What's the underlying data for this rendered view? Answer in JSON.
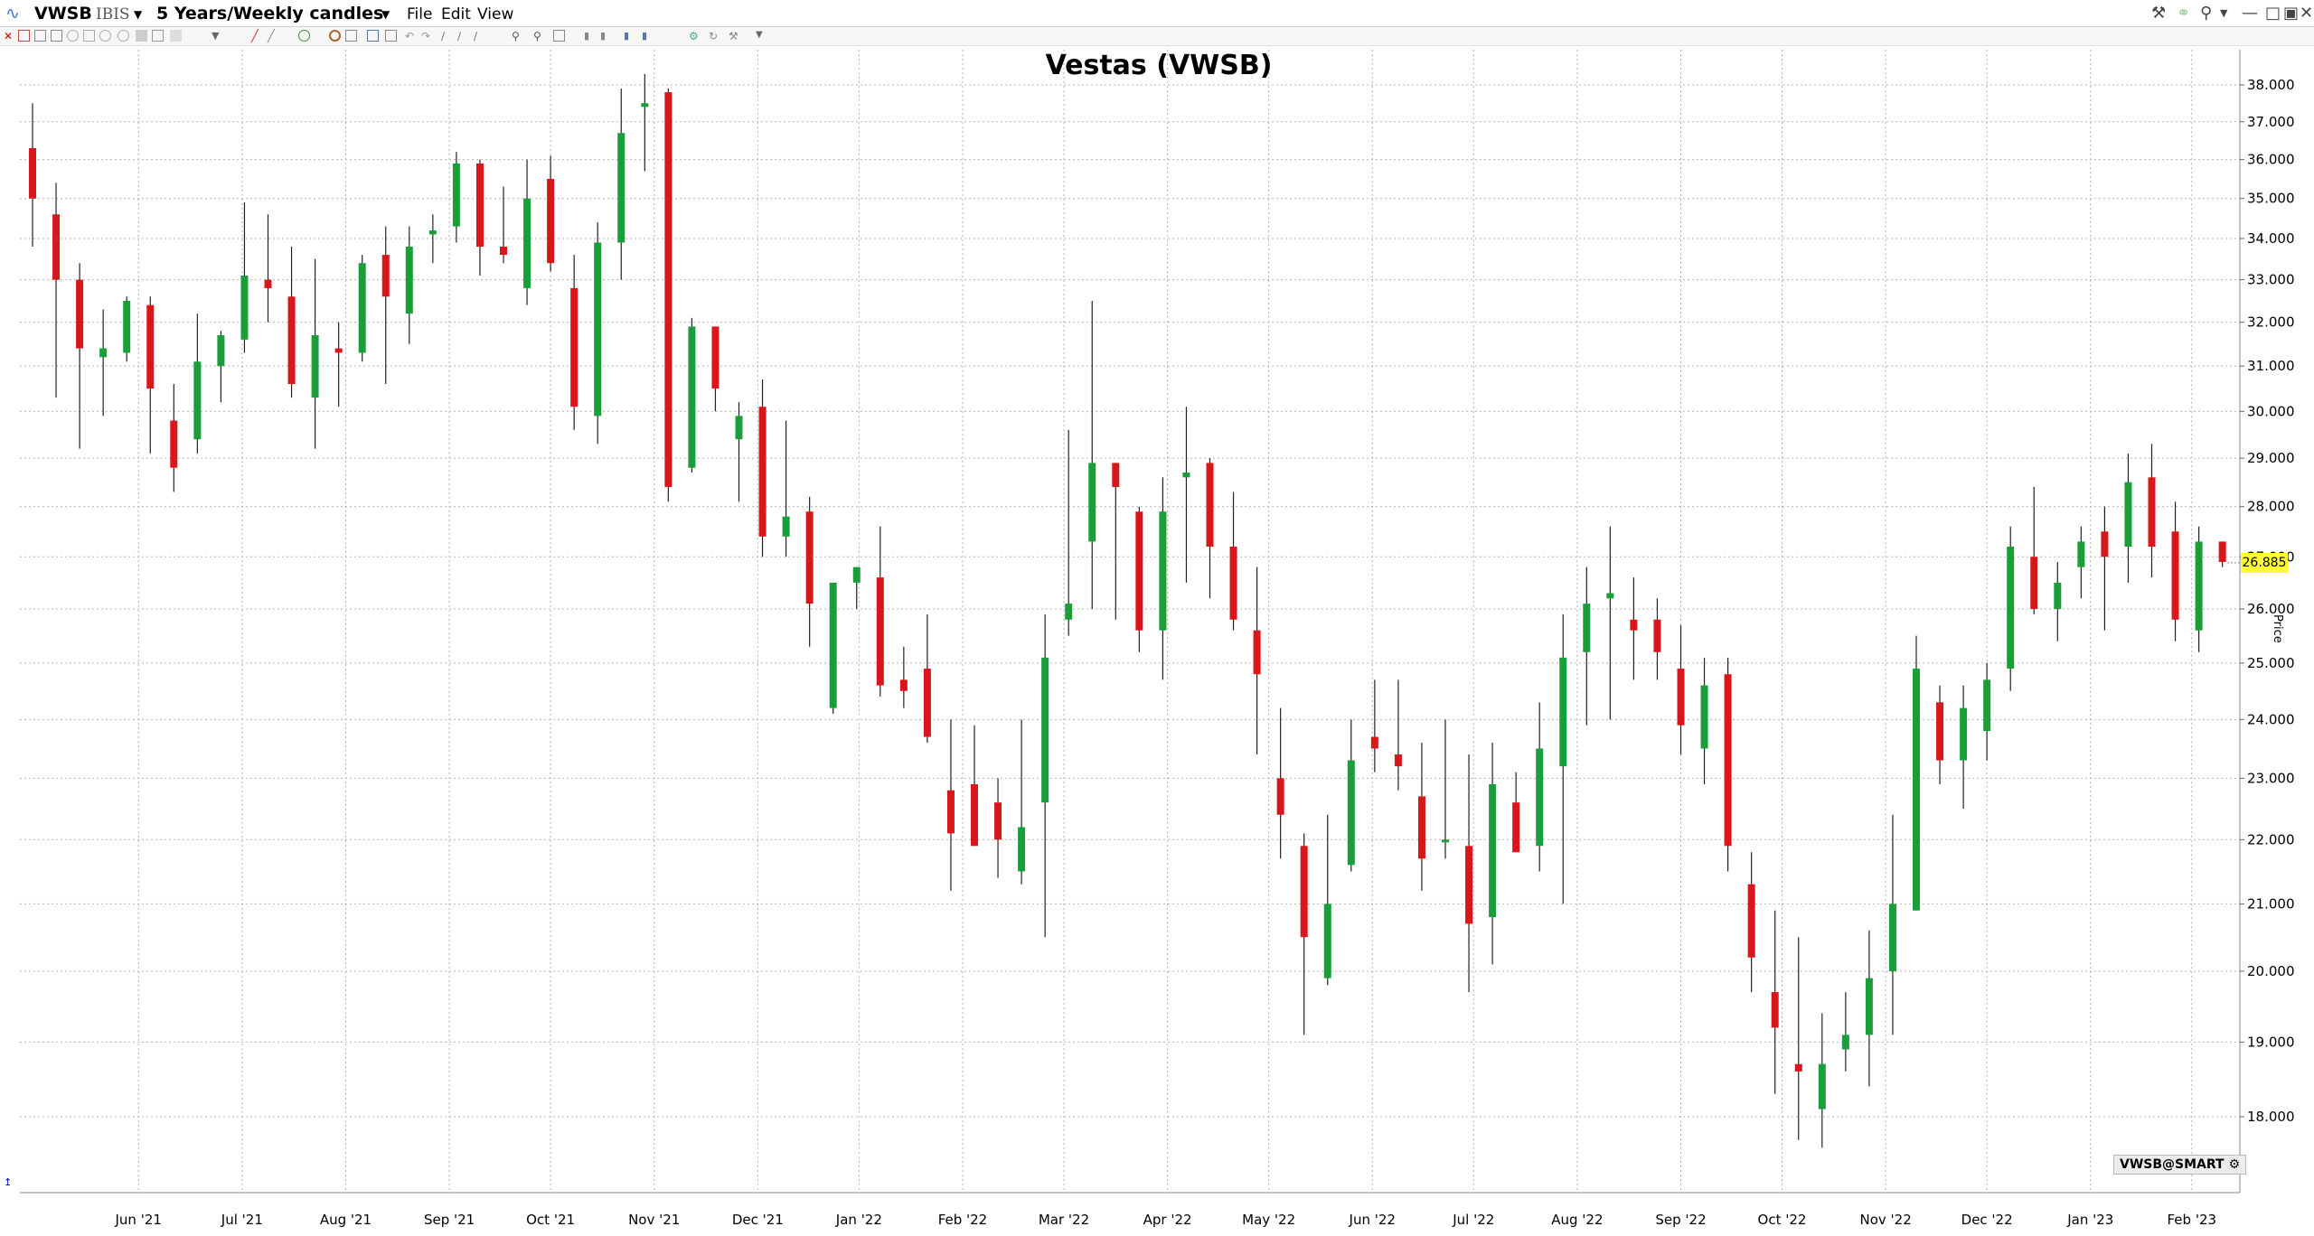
{
  "header": {
    "symbol": "VWSB",
    "exchange": "IBIS",
    "period": "5 Years/Weekly candles",
    "menu": [
      "File",
      "Edit",
      "View"
    ]
  },
  "legend": {
    "label": "VWSB@SMART"
  },
  "axis_caption": "Price",
  "colors": {
    "up": "#1a9e3a",
    "down": "#d9161c",
    "last_price_bg": "#ffff33",
    "grid": "#b4b4b4"
  },
  "chart_data": {
    "type": "candlestick",
    "title": "Vestas (VWSB)",
    "ylabel": "Price",
    "scale": "log",
    "ylim": [
      17.2,
      38.4
    ],
    "grid": true,
    "last_price": "26.885",
    "yticks": [
      "18.000",
      "19.000",
      "20.000",
      "21.000",
      "22.000",
      "23.000",
      "24.000",
      "25.000",
      "26.000",
      "27.000",
      "28.000",
      "29.000",
      "30.000",
      "31.000",
      "32.000",
      "33.000",
      "34.000",
      "35.000",
      "36.000",
      "37.000",
      "38.000"
    ],
    "month_labels": [
      {
        "label": "Jun '21",
        "idx": 4.5
      },
      {
        "label": "Jul '21",
        "idx": 8.9
      },
      {
        "label": "Aug '21",
        "idx": 13.3
      },
      {
        "label": "Sep '21",
        "idx": 17.7
      },
      {
        "label": "Oct '21",
        "idx": 22.0
      },
      {
        "label": "Nov '21",
        "idx": 26.4
      },
      {
        "label": "Dec '21",
        "idx": 30.8
      },
      {
        "label": "Jan '22",
        "idx": 35.1
      },
      {
        "label": "Feb '22",
        "idx": 39.5
      },
      {
        "label": "Mar '22",
        "idx": 43.8
      },
      {
        "label": "Apr '22",
        "idx": 48.2
      },
      {
        "label": "May '22",
        "idx": 52.5
      },
      {
        "label": "Jun '22",
        "idx": 56.9
      },
      {
        "label": "Jul '22",
        "idx": 61.2
      },
      {
        "label": "Aug '22",
        "idx": 65.6
      },
      {
        "label": "Sep '22",
        "idx": 70.0
      },
      {
        "label": "Oct '22",
        "idx": 74.3
      },
      {
        "label": "Nov '22",
        "idx": 78.7
      },
      {
        "label": "Dec '22",
        "idx": 83.0
      },
      {
        "label": "Jan '23",
        "idx": 87.4
      },
      {
        "label": "Feb '23",
        "idx": 91.7
      }
    ],
    "candles": [
      {
        "o": 36.3,
        "h": 37.5,
        "l": 33.8,
        "c": 35.0
      },
      {
        "o": 34.6,
        "h": 35.4,
        "l": 30.3,
        "c": 33.0
      },
      {
        "o": 33.0,
        "h": 33.4,
        "l": 29.2,
        "c": 31.4
      },
      {
        "o": 31.2,
        "h": 32.3,
        "l": 29.9,
        "c": 31.4
      },
      {
        "o": 31.3,
        "h": 32.6,
        "l": 31.1,
        "c": 32.5
      },
      {
        "o": 32.4,
        "h": 32.6,
        "l": 29.1,
        "c": 30.5
      },
      {
        "o": 29.8,
        "h": 30.6,
        "l": 28.3,
        "c": 28.8
      },
      {
        "o": 29.4,
        "h": 32.2,
        "l": 29.1,
        "c": 31.1
      },
      {
        "o": 31.0,
        "h": 31.8,
        "l": 30.2,
        "c": 31.7
      },
      {
        "o": 31.6,
        "h": 34.9,
        "l": 31.3,
        "c": 33.1
      },
      {
        "o": 33.0,
        "h": 34.6,
        "l": 32.0,
        "c": 32.8
      },
      {
        "o": 32.6,
        "h": 33.8,
        "l": 30.3,
        "c": 30.6
      },
      {
        "o": 30.3,
        "h": 33.5,
        "l": 29.2,
        "c": 31.7
      },
      {
        "o": 31.4,
        "h": 32.0,
        "l": 30.1,
        "c": 31.3
      },
      {
        "o": 31.3,
        "h": 33.6,
        "l": 31.1,
        "c": 33.4
      },
      {
        "o": 33.6,
        "h": 34.3,
        "l": 30.6,
        "c": 32.6
      },
      {
        "o": 32.2,
        "h": 34.3,
        "l": 31.5,
        "c": 33.8
      },
      {
        "o": 34.1,
        "h": 34.6,
        "l": 33.4,
        "c": 34.2
      },
      {
        "o": 34.3,
        "h": 36.2,
        "l": 33.9,
        "c": 35.9
      },
      {
        "o": 35.9,
        "h": 36.0,
        "l": 33.1,
        "c": 33.8
      },
      {
        "o": 33.8,
        "h": 35.3,
        "l": 33.4,
        "c": 33.6
      },
      {
        "o": 32.8,
        "h": 36.0,
        "l": 32.4,
        "c": 35.0
      },
      {
        "o": 35.5,
        "h": 36.1,
        "l": 33.2,
        "c": 33.4
      },
      {
        "o": 32.8,
        "h": 33.6,
        "l": 29.6,
        "c": 30.1
      },
      {
        "o": 29.9,
        "h": 34.4,
        "l": 29.3,
        "c": 33.9
      },
      {
        "o": 33.9,
        "h": 37.9,
        "l": 33.0,
        "c": 36.7
      },
      {
        "o": 37.4,
        "h": 38.3,
        "l": 35.7,
        "c": 37.5
      },
      {
        "o": 37.8,
        "h": 37.9,
        "l": 28.1,
        "c": 28.4
      },
      {
        "o": 28.8,
        "h": 32.1,
        "l": 28.7,
        "c": 31.9
      },
      {
        "o": 31.9,
        "h": 31.9,
        "l": 30.0,
        "c": 30.5
      },
      {
        "o": 29.4,
        "h": 30.2,
        "l": 28.1,
        "c": 29.9
      },
      {
        "o": 30.1,
        "h": 30.7,
        "l": 27.0,
        "c": 27.4
      },
      {
        "o": 27.4,
        "h": 29.8,
        "l": 27.0,
        "c": 27.8
      },
      {
        "o": 27.9,
        "h": 28.2,
        "l": 25.3,
        "c": 26.1
      },
      {
        "o": 24.2,
        "h": 26.5,
        "l": 24.1,
        "c": 26.5
      },
      {
        "o": 26.5,
        "h": 26.8,
        "l": 26.0,
        "c": 26.8
      },
      {
        "o": 26.6,
        "h": 27.6,
        "l": 24.4,
        "c": 24.6
      },
      {
        "o": 24.7,
        "h": 25.3,
        "l": 24.2,
        "c": 24.5
      },
      {
        "o": 24.9,
        "h": 25.9,
        "l": 23.6,
        "c": 23.7
      },
      {
        "o": 22.8,
        "h": 24.0,
        "l": 21.2,
        "c": 22.1
      },
      {
        "o": 22.9,
        "h": 23.9,
        "l": 21.9,
        "c": 21.9
      },
      {
        "o": 22.6,
        "h": 23.0,
        "l": 21.4,
        "c": 22.0
      },
      {
        "o": 21.5,
        "h": 24.0,
        "l": 21.3,
        "c": 22.2
      },
      {
        "o": 22.6,
        "h": 25.9,
        "l": 20.5,
        "c": 25.1
      },
      {
        "o": 25.8,
        "h": 29.6,
        "l": 25.5,
        "c": 26.1
      },
      {
        "o": 27.3,
        "h": 32.5,
        "l": 26.0,
        "c": 28.9
      },
      {
        "o": 28.9,
        "h": 28.9,
        "l": 25.8,
        "c": 28.4
      },
      {
        "o": 27.9,
        "h": 28.0,
        "l": 25.2,
        "c": 25.6
      },
      {
        "o": 25.6,
        "h": 28.6,
        "l": 24.7,
        "c": 27.9
      },
      {
        "o": 28.6,
        "h": 30.1,
        "l": 26.5,
        "c": 28.7
      },
      {
        "o": 28.9,
        "h": 29.0,
        "l": 26.2,
        "c": 27.2
      },
      {
        "o": 27.2,
        "h": 28.3,
        "l": 25.6,
        "c": 25.8
      },
      {
        "o": 25.6,
        "h": 26.8,
        "l": 23.4,
        "c": 24.8
      },
      {
        "o": 23.0,
        "h": 24.2,
        "l": 21.7,
        "c": 22.4
      },
      {
        "o": 21.9,
        "h": 22.1,
        "l": 19.1,
        "c": 20.5
      },
      {
        "o": 19.9,
        "h": 22.4,
        "l": 19.8,
        "c": 21.0
      },
      {
        "o": 21.6,
        "h": 24.0,
        "l": 21.5,
        "c": 23.3
      },
      {
        "o": 23.7,
        "h": 24.7,
        "l": 23.1,
        "c": 23.5
      },
      {
        "o": 23.4,
        "h": 24.7,
        "l": 22.8,
        "c": 23.2
      },
      {
        "o": 22.7,
        "h": 23.6,
        "l": 21.2,
        "c": 21.7
      },
      {
        "o": 22.0,
        "h": 24.0,
        "l": 21.7,
        "c": 22.0
      },
      {
        "o": 21.9,
        "h": 23.4,
        "l": 19.7,
        "c": 20.7
      },
      {
        "o": 20.8,
        "h": 23.6,
        "l": 20.1,
        "c": 22.9
      },
      {
        "o": 22.6,
        "h": 23.1,
        "l": 21.9,
        "c": 21.8
      },
      {
        "o": 21.9,
        "h": 24.3,
        "l": 21.5,
        "c": 23.5
      },
      {
        "o": 23.2,
        "h": 25.9,
        "l": 21.0,
        "c": 25.1
      },
      {
        "o": 25.2,
        "h": 26.8,
        "l": 23.9,
        "c": 26.1
      },
      {
        "o": 26.2,
        "h": 27.6,
        "l": 24.0,
        "c": 26.3
      },
      {
        "o": 25.8,
        "h": 26.6,
        "l": 24.7,
        "c": 25.6
      },
      {
        "o": 25.8,
        "h": 26.2,
        "l": 24.7,
        "c": 25.2
      },
      {
        "o": 24.9,
        "h": 25.7,
        "l": 23.4,
        "c": 23.9
      },
      {
        "o": 23.5,
        "h": 25.1,
        "l": 22.9,
        "c": 24.6
      },
      {
        "o": 24.8,
        "h": 25.1,
        "l": 21.5,
        "c": 21.9
      },
      {
        "o": 21.3,
        "h": 21.8,
        "l": 19.7,
        "c": 20.2
      },
      {
        "o": 19.7,
        "h": 20.9,
        "l": 18.3,
        "c": 19.2
      },
      {
        "o": 18.7,
        "h": 20.5,
        "l": 17.7,
        "c": 18.6
      },
      {
        "o": 18.1,
        "h": 19.4,
        "l": 17.6,
        "c": 18.7
      },
      {
        "o": 18.9,
        "h": 19.7,
        "l": 18.6,
        "c": 19.1
      },
      {
        "o": 19.1,
        "h": 20.6,
        "l": 18.4,
        "c": 19.9
      },
      {
        "o": 20.0,
        "h": 22.4,
        "l": 19.1,
        "c": 21.0
      },
      {
        "o": 20.9,
        "h": 25.5,
        "l": 20.9,
        "c": 24.9
      },
      {
        "o": 24.3,
        "h": 24.6,
        "l": 22.9,
        "c": 23.3
      },
      {
        "o": 23.3,
        "h": 24.6,
        "l": 22.5,
        "c": 24.2
      },
      {
        "o": 23.8,
        "h": 25.0,
        "l": 23.3,
        "c": 24.7
      },
      {
        "o": 24.9,
        "h": 27.6,
        "l": 24.5,
        "c": 27.2
      },
      {
        "o": 27.0,
        "h": 28.4,
        "l": 25.9,
        "c": 26.0
      },
      {
        "o": 26.0,
        "h": 26.9,
        "l": 25.4,
        "c": 26.5
      },
      {
        "o": 26.8,
        "h": 27.6,
        "l": 26.2,
        "c": 27.3
      },
      {
        "o": 27.5,
        "h": 28.0,
        "l": 25.6,
        "c": 27.0
      },
      {
        "o": 27.2,
        "h": 29.1,
        "l": 26.5,
        "c": 28.5
      },
      {
        "o": 28.6,
        "h": 29.3,
        "l": 26.6,
        "c": 27.2
      },
      {
        "o": 27.5,
        "h": 28.1,
        "l": 25.4,
        "c": 25.8
      },
      {
        "o": 25.6,
        "h": 27.6,
        "l": 25.2,
        "c": 27.3
      },
      {
        "o": 27.3,
        "h": 27.3,
        "l": 26.8,
        "c": 26.9
      }
    ]
  }
}
